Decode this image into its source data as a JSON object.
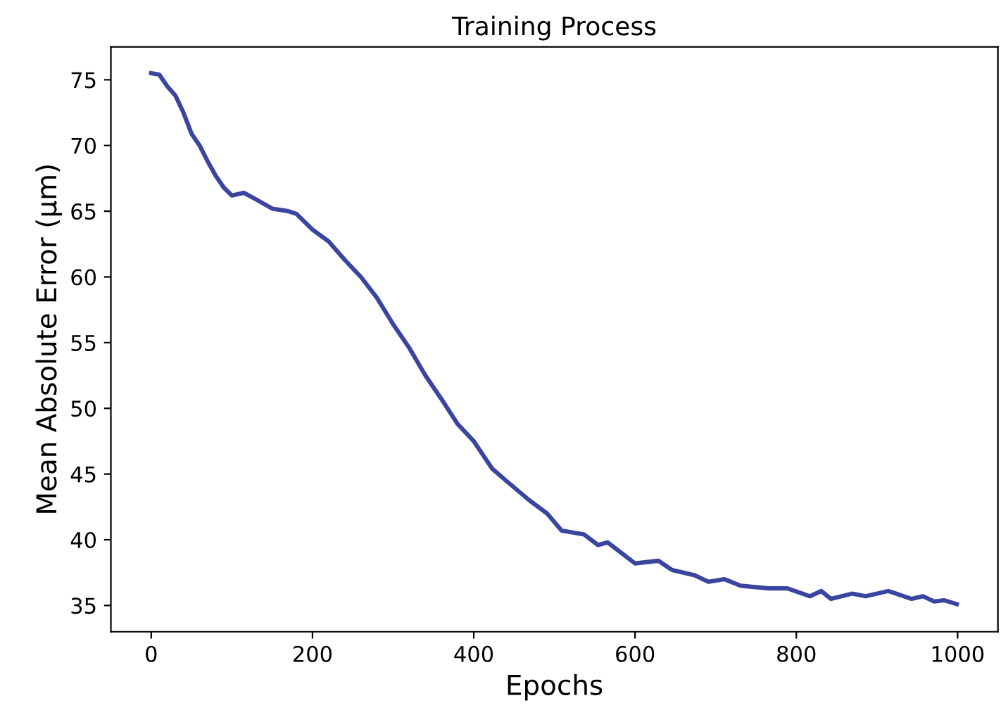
{
  "chart_data": {
    "type": "line",
    "title": "Training Process",
    "xlabel": "Epochs",
    "ylabel": "Mean Absolute Error (μm)",
    "xlim": [
      -50,
      1050
    ],
    "xticks": [
      0,
      200,
      400,
      600,
      800,
      1000
    ],
    "ylim": [
      33,
      77.5
    ],
    "yticks": [
      35,
      40,
      45,
      50,
      55,
      60,
      65,
      70,
      75
    ],
    "marker": "none",
    "line_style": "solid",
    "series": [
      {
        "color": "#3a45a0",
        "x": [
          0,
          10,
          20,
          30,
          40,
          50,
          60,
          70,
          80,
          90,
          100,
          115,
          130,
          150,
          170,
          180,
          200,
          220,
          240,
          260,
          280,
          300,
          320,
          340,
          360,
          380,
          400,
          423,
          440,
          469,
          491,
          509,
          537,
          554,
          566,
          600,
          629,
          646,
          674,
          691,
          711,
          731,
          766,
          789,
          817,
          831,
          843,
          869,
          886,
          914,
          943,
          957,
          971,
          983,
          999
        ],
        "values": [
          75.5,
          75.4,
          74.5,
          73.8,
          72.5,
          70.9,
          70.0,
          68.8,
          67.7,
          66.8,
          66.2,
          66.4,
          65.9,
          65.2,
          65.0,
          64.8,
          63.6,
          62.7,
          61.3,
          60.0,
          58.4,
          56.4,
          54.6,
          52.5,
          50.7,
          48.8,
          47.5,
          45.4,
          44.5,
          43.0,
          42.0,
          40.7,
          40.4,
          39.6,
          39.8,
          38.2,
          38.4,
          37.7,
          37.3,
          36.8,
          37.0,
          36.5,
          36.3,
          36.3,
          35.7,
          36.1,
          35.5,
          35.9,
          35.7,
          36.1,
          35.5,
          35.7,
          35.3,
          35.4,
          35.1
        ]
      }
    ]
  }
}
